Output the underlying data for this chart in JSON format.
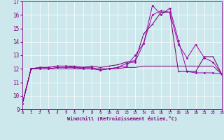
{
  "xlabel": "Windchill (Refroidissement éolien,°C)",
  "bg_color": "#cce8ec",
  "line_color": "#800080",
  "xlim": [
    0,
    23
  ],
  "ylim": [
    9,
    17
  ],
  "yticks": [
    9,
    10,
    11,
    12,
    13,
    14,
    15,
    16,
    17
  ],
  "xticks": [
    0,
    1,
    2,
    3,
    4,
    5,
    6,
    7,
    8,
    9,
    10,
    11,
    12,
    13,
    14,
    15,
    16,
    17,
    18,
    19,
    20,
    21,
    22,
    23
  ],
  "series1_x": [
    0,
    1,
    2,
    3,
    4,
    5,
    6,
    7,
    8,
    9,
    10,
    11,
    12,
    13,
    14,
    15,
    16,
    17,
    18,
    19,
    20,
    21,
    22,
    23
  ],
  "series1_y": [
    9.4,
    12.0,
    12.1,
    12.1,
    12.2,
    12.2,
    12.1,
    12.1,
    12.1,
    11.9,
    12.0,
    12.1,
    12.2,
    13.0,
    13.9,
    16.0,
    16.3,
    16.2,
    13.8,
    12.8,
    13.8,
    12.8,
    12.5,
    11.6
  ],
  "series2_x": [
    0,
    1,
    2,
    3,
    4,
    5,
    6,
    7,
    8,
    9,
    10,
    11,
    12,
    13,
    14,
    15,
    16,
    17,
    18,
    19,
    20,
    21,
    22,
    23
  ],
  "series2_y": [
    9.4,
    12.0,
    12.0,
    12.0,
    12.1,
    12.1,
    12.1,
    12.0,
    12.0,
    11.9,
    12.0,
    12.1,
    12.4,
    12.5,
    13.9,
    16.7,
    16.0,
    16.5,
    14.1,
    11.8,
    11.7,
    11.7,
    11.7,
    11.6
  ],
  "series3_x": [
    0,
    1,
    2,
    3,
    4,
    5,
    6,
    7,
    8,
    9,
    10,
    11,
    12,
    13,
    14,
    15,
    16,
    17,
    18,
    19,
    20,
    21,
    22,
    23
  ],
  "series3_y": [
    9.4,
    12.0,
    12.1,
    12.1,
    12.2,
    12.2,
    12.2,
    12.1,
    12.2,
    12.1,
    12.2,
    12.3,
    12.5,
    12.6,
    14.6,
    15.3,
    16.2,
    16.2,
    11.8,
    11.8,
    11.8,
    12.9,
    12.9,
    11.6
  ],
  "series4_x": [
    0,
    1,
    2,
    3,
    4,
    5,
    6,
    7,
    8,
    9,
    10,
    11,
    12,
    13,
    14,
    15,
    16,
    17,
    18,
    19,
    20,
    21,
    22,
    23
  ],
  "series4_y": [
    9.4,
    12.0,
    12.0,
    12.0,
    12.0,
    12.0,
    12.0,
    12.0,
    12.0,
    12.0,
    12.0,
    12.0,
    12.1,
    12.1,
    12.2,
    12.2,
    12.2,
    12.2,
    12.2,
    12.2,
    12.2,
    12.2,
    12.2,
    11.6
  ]
}
